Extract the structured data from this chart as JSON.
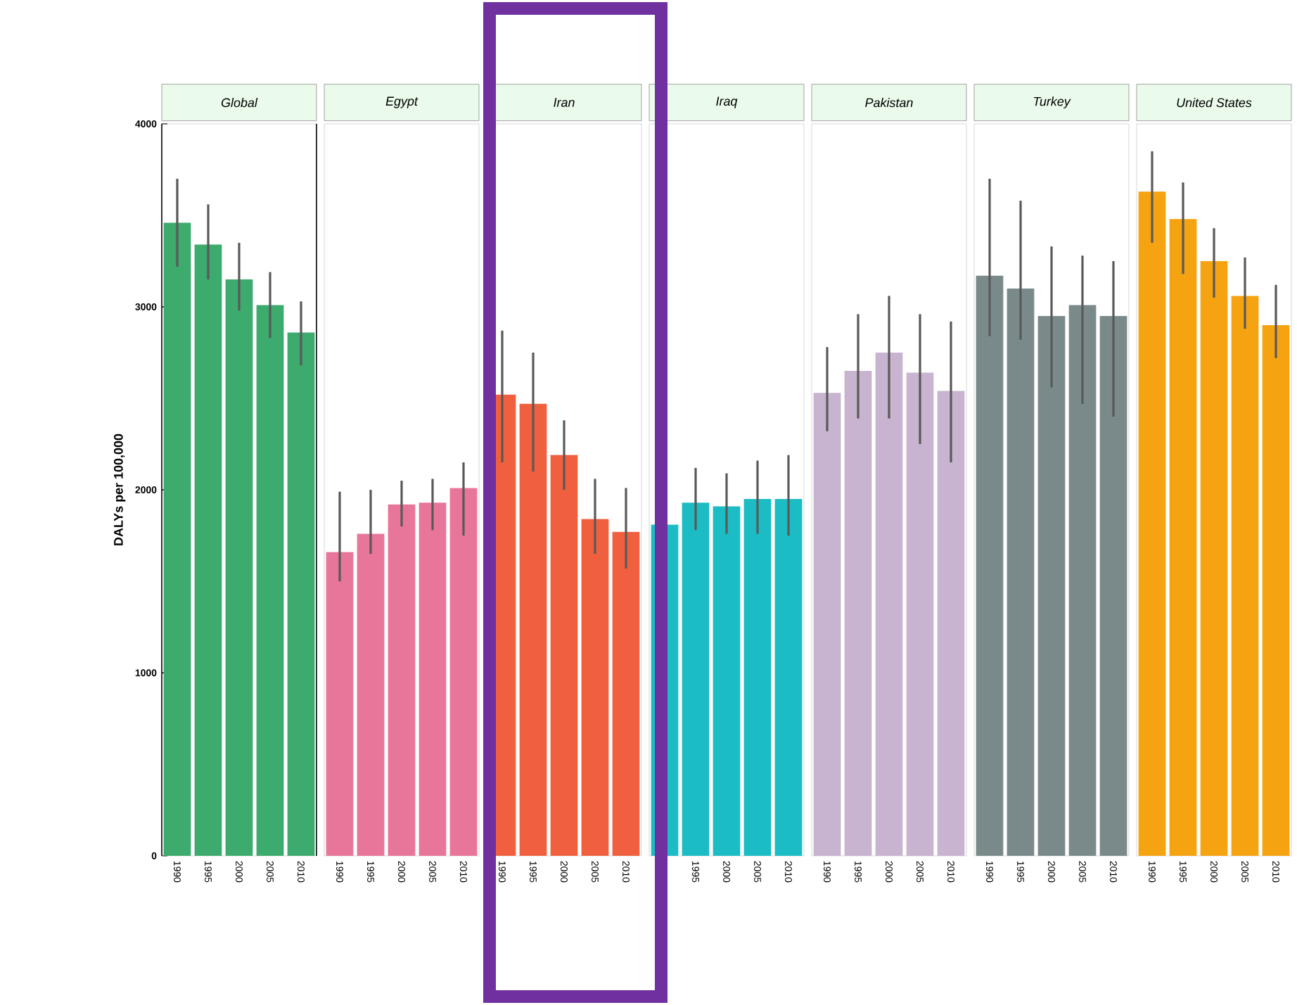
{
  "chart_data": [
    {
      "type": "bar",
      "title": "Global",
      "ylabel": "DALYs per 100,000",
      "categories": [
        "1990",
        "1995",
        "2000",
        "2005",
        "2010"
      ],
      "values": [
        3460,
        3340,
        3150,
        3010,
        2860
      ],
      "errors": [
        [
          3220,
          3700
        ],
        [
          3150,
          3560
        ],
        [
          2980,
          3350
        ],
        [
          2830,
          3190
        ],
        [
          2680,
          3030
        ]
      ],
      "color": "#3daa6e",
      "ylim": [
        0,
        4000
      ],
      "yticks": [
        0,
        1000,
        2000,
        3000,
        4000
      ]
    },
    {
      "type": "bar",
      "title": "Egypt",
      "categories": [
        "1990",
        "1995",
        "2000",
        "2005",
        "2010"
      ],
      "values": [
        1660,
        1760,
        1920,
        1930,
        2010
      ],
      "errors": [
        [
          1500,
          1990
        ],
        [
          1650,
          2000
        ],
        [
          1800,
          2050
        ],
        [
          1780,
          2060
        ],
        [
          1750,
          2150
        ]
      ],
      "color": "#e8759a",
      "ylim": [
        0,
        4000
      ],
      "yticks": [
        0,
        1000,
        2000,
        3000,
        4000
      ],
      "tick_labels": "x"
    },
    {
      "type": "bar",
      "title": "Iran",
      "categories": [
        "1990",
        "1995",
        "2000",
        "2005",
        "2010"
      ],
      "values": [
        2520,
        2470,
        2190,
        1840,
        1770
      ],
      "errors": [
        [
          2150,
          2870
        ],
        [
          2100,
          2750
        ],
        [
          2000,
          2380
        ],
        [
          1650,
          2060
        ],
        [
          1570,
          2010
        ]
      ],
      "color": "#f0603e",
      "ylim": [
        0,
        4000
      ],
      "yticks": [
        0,
        1000,
        2000,
        3000,
        4000
      ],
      "tick_labels": "x"
    },
    {
      "type": "bar",
      "title": "Iraq",
      "categories": [
        null,
        "1995",
        "2000",
        "2005",
        "2010"
      ],
      "values": [
        1810,
        1930,
        1910,
        1950,
        1950
      ],
      "errors": [
        null,
        [
          1780,
          2120
        ],
        [
          1760,
          2090
        ],
        [
          1760,
          2160
        ],
        [
          1750,
          2190
        ]
      ],
      "color": "#1bbcc4",
      "ylim": [
        0,
        4000
      ],
      "yticks": [
        0,
        1000,
        2000,
        3000,
        4000
      ],
      "tick_labels": "x"
    },
    {
      "type": "bar",
      "title": "Pakistan",
      "categories": [
        "1990",
        "1995",
        "2000",
        "2005",
        "2010"
      ],
      "values": [
        2530,
        2650,
        2750,
        2640,
        2540
      ],
      "errors": [
        [
          2320,
          2780
        ],
        [
          2390,
          2960
        ],
        [
          2390,
          3060
        ],
        [
          2250,
          2960
        ],
        [
          2150,
          2920
        ]
      ],
      "color": "#c8b4d0",
      "ylim": [
        0,
        4000
      ],
      "yticks": [
        0,
        1000,
        2000,
        3000,
        4000
      ],
      "tick_labels": "x"
    },
    {
      "type": "bar",
      "title": "Turkey",
      "categories": [
        "1990",
        "1995",
        "2000",
        "2005",
        "2010"
      ],
      "values": [
        3170,
        3100,
        2950,
        3010,
        2950
      ],
      "errors": [
        [
          2840,
          3700
        ],
        [
          2820,
          3580
        ],
        [
          2560,
          3330
        ],
        [
          2470,
          3280
        ],
        [
          2400,
          3250
        ]
      ],
      "color": "#7a8a8a",
      "ylim": [
        0,
        4000
      ],
      "yticks": [
        0,
        1000,
        2000,
        3000,
        4000
      ],
      "tick_labels": "x"
    },
    {
      "type": "bar",
      "title": "United States",
      "categories": [
        "1990",
        "1995",
        "2000",
        "2005",
        "2010"
      ],
      "values": [
        3630,
        3480,
        3250,
        3060,
        2900
      ],
      "errors": [
        [
          3350,
          3850
        ],
        [
          3180,
          3680
        ],
        [
          3050,
          3430
        ],
        [
          2880,
          3270
        ],
        [
          2720,
          3120
        ]
      ],
      "color": "#f5a311",
      "ylim": [
        0,
        4000
      ],
      "yticks": [
        0,
        1000,
        2000,
        3000,
        4000
      ],
      "tick_labels": "x"
    }
  ]
}
